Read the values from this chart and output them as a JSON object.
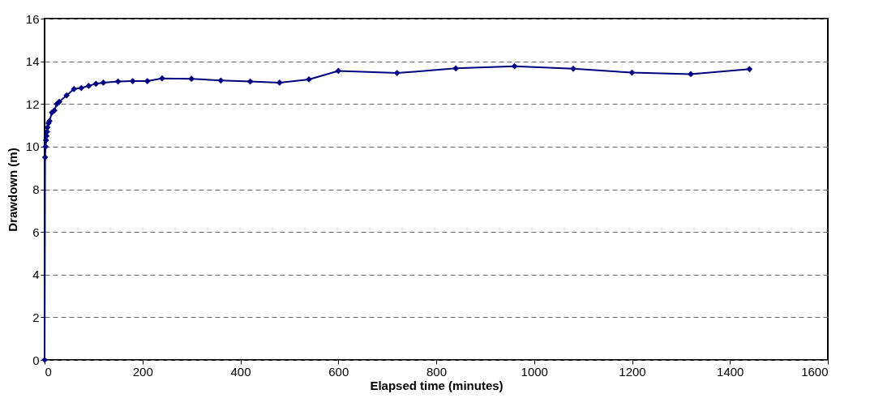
{
  "chart_data": {
    "type": "line",
    "xlabel": "Elapsed time (minutes)",
    "ylabel": "Drawdown (m)",
    "x": [
      0,
      1,
      2,
      3,
      4,
      5,
      6,
      8,
      10,
      15,
      20,
      25,
      30,
      45,
      60,
      75,
      90,
      105,
      120,
      150,
      180,
      210,
      240,
      300,
      360,
      420,
      480,
      540,
      600,
      720,
      840,
      960,
      1080,
      1200,
      1320,
      1440
    ],
    "series": [
      {
        "color": "#000080",
        "values": [
          0,
          9.5,
          10,
          10.3,
          10.5,
          10.7,
          10.9,
          11.1,
          11.2,
          11.6,
          11.7,
          12.0,
          12.1,
          12.4,
          12.7,
          12.75,
          12.85,
          12.95,
          13.0,
          13.05,
          13.07,
          13.07,
          13.2,
          13.18,
          13.1,
          13.05,
          13.0,
          13.15,
          13.55,
          13.45,
          13.67,
          13.77,
          13.65,
          13.47,
          13.4,
          13.63
        ]
      }
    ],
    "xlim": [
      0,
      1600
    ],
    "xticks": [
      0,
      200,
      400,
      600,
      800,
      1000,
      1200,
      1400,
      1600
    ],
    "ylim": [
      0,
      16
    ],
    "yticks": [
      0,
      2,
      4,
      6,
      8,
      10,
      12,
      14,
      16
    ],
    "grid": "y",
    "marker": "diamond",
    "line_style": "solid"
  }
}
